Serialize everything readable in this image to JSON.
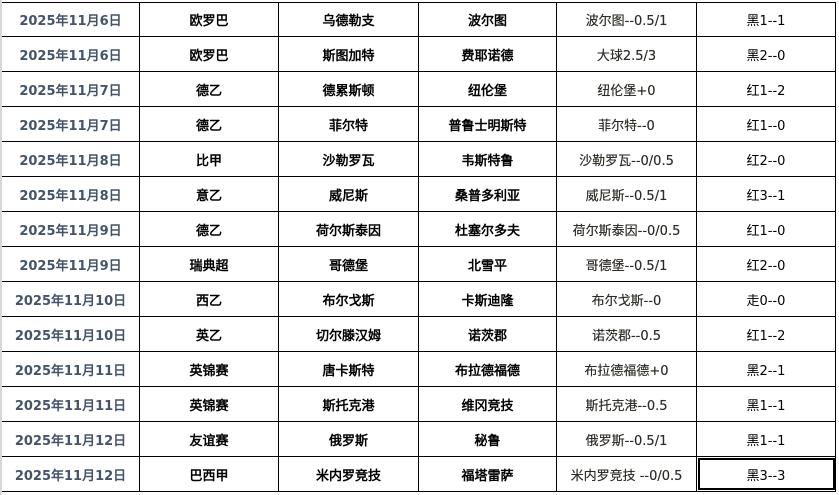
{
  "rows": [
    {
      "date": "2025年11月6日",
      "league": "欧罗巴",
      "home": "乌德勒支",
      "away": "波尔图",
      "handicap": "波尔图--0.5/1",
      "result": "黑1--1"
    },
    {
      "date": "2025年11月6日",
      "league": "欧罗巴",
      "home": "斯图加特",
      "away": "费耶诺德",
      "handicap": "大球2.5/3",
      "result": "黑2--0"
    },
    {
      "date": "2025年11月7日",
      "league": "德乙",
      "home": "德累斯顿",
      "away": "纽伦堡",
      "handicap": "纽伦堡+0",
      "result": "红1--2"
    },
    {
      "date": "2025年11月7日",
      "league": "德乙",
      "home": "菲尔特",
      "away": "普鲁士明斯特",
      "handicap": "菲尔特--0",
      "result": "红1--0"
    },
    {
      "date": "2025年11月8日",
      "league": "比甲",
      "home": "沙勒罗瓦",
      "away": "韦斯特鲁",
      "handicap": "沙勒罗瓦--0/0.5",
      "result": "红2--0"
    },
    {
      "date": "2025年11月8日",
      "league": "意乙",
      "home": "威尼斯",
      "away": "桑普多利亚",
      "handicap": "威尼斯--0.5/1",
      "result": "红3--1"
    },
    {
      "date": "2025年11月9日",
      "league": "德乙",
      "home": "荷尔斯泰因",
      "away": "杜塞尔多夫",
      "handicap": "荷尔斯泰因--0/0.5",
      "result": "红1--0"
    },
    {
      "date": "2025年11月9日",
      "league": "瑞典超",
      "home": "哥德堡",
      "away": "北雪平",
      "handicap": "哥德堡--0.5/1",
      "result": "红2--0"
    },
    {
      "date": "2025年11月10日",
      "league": "西乙",
      "home": "布尔戈斯",
      "away": "卡斯迪隆",
      "handicap": "布尔戈斯--0",
      "result": "走0--0"
    },
    {
      "date": "2025年11月10日",
      "league": "英乙",
      "home": "切尔滕汉姆",
      "away": "诺茨郡",
      "handicap": "诺茨郡--0.5",
      "result": "红1--2"
    },
    {
      "date": "2025年11月11日",
      "league": "英锦赛",
      "home": "唐卡斯特",
      "away": "布拉德福德",
      "handicap": "布拉德福德+0",
      "result": "黑2--1"
    },
    {
      "date": "2025年11月11日",
      "league": "英锦赛",
      "home": "斯托克港",
      "away": "维冈竞技",
      "handicap": "斯托克港--0.5",
      "result": "黑1--1"
    },
    {
      "date": "2025年11月12日",
      "league": "友谊赛",
      "home": "俄罗斯",
      "away": "秘鲁",
      "handicap": "俄罗斯--0.5/1",
      "result": "黑1--1"
    },
    {
      "date": "2025年11月12日",
      "league": "巴西甲",
      "home": "米内罗竞技",
      "away": "福塔雷萨",
      "handicap": "米内罗竞技   --0/0.5",
      "result": "黑3--3"
    }
  ]
}
